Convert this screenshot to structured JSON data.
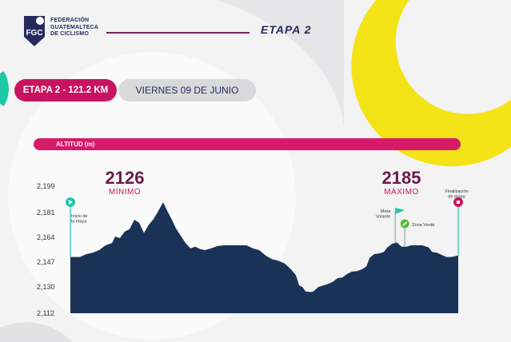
{
  "header": {
    "federation_lines": [
      "FEDERACIÓN",
      "GUATEMALTECA",
      "DE CICLISMO"
    ],
    "logo_text": "FGC",
    "stage_title": "ETAPA 2"
  },
  "info": {
    "stage_label": "ETAPA 2 - 121.2 KM",
    "date_label": "VIERNES 09 DE JUNIO"
  },
  "colors": {
    "navy": "#1b3257",
    "magenta": "#c8145f",
    "yellow": "#f3e317",
    "teal": "#1ec7a6",
    "green": "#5bbd3a"
  },
  "chart_data": {
    "type": "area",
    "title": "ALTITUD (m)",
    "ylabel": "",
    "xlabel": "",
    "ylim": [
      2112,
      2199
    ],
    "yticks": [
      "2,199",
      "2,181",
      "2,164",
      "2,147",
      "2,130",
      "2,112"
    ],
    "y_tick_values": [
      2199,
      2181,
      2164,
      2147,
      2130,
      2112
    ],
    "x_unit_note": "",
    "min_value": "2126",
    "min_label": "MÍNIMO",
    "max_value": "2185",
    "max_label": "MÁXIMO",
    "series": [
      {
        "values": [
          [
            0,
            2150.5
          ],
          [
            3,
            2150.5
          ],
          [
            5,
            2152.5
          ],
          [
            7,
            2153.5
          ],
          [
            9,
            2155.2
          ],
          [
            11,
            2158.5
          ],
          [
            13,
            2160
          ],
          [
            14,
            2164.5
          ],
          [
            15.5,
            2163.5
          ],
          [
            17,
            2168
          ],
          [
            18.5,
            2169.5
          ],
          [
            20,
            2176
          ],
          [
            21.5,
            2174
          ],
          [
            23,
            2167
          ],
          [
            24.5,
            2172.5
          ],
          [
            26,
            2176.5
          ],
          [
            27.5,
            2182
          ],
          [
            29,
            2188
          ],
          [
            30.5,
            2181
          ],
          [
            31.5,
            2177
          ],
          [
            33,
            2170
          ],
          [
            34.5,
            2165
          ],
          [
            36,
            2160
          ],
          [
            37.5,
            2156.5
          ],
          [
            39,
            2157.5
          ],
          [
            40.5,
            2156
          ],
          [
            42,
            2155.2
          ],
          [
            44,
            2156.5
          ],
          [
            46,
            2158
          ],
          [
            48,
            2158.5
          ],
          [
            50,
            2158.5
          ],
          [
            53,
            2158.5
          ],
          [
            55,
            2158.5
          ],
          [
            57,
            2156.5
          ],
          [
            59,
            2155.2
          ],
          [
            61,
            2151.5
          ],
          [
            63,
            2149
          ],
          [
            65,
            2148
          ],
          [
            67,
            2146
          ],
          [
            69,
            2142
          ],
          [
            70.5,
            2138
          ],
          [
            71.5,
            2131
          ],
          [
            72.5,
            2130
          ],
          [
            73.5,
            2127
          ],
          [
            75,
            2126.5
          ],
          [
            76,
            2127
          ],
          [
            77.5,
            2130
          ],
          [
            79,
            2131
          ],
          [
            80.5,
            2132
          ],
          [
            82,
            2133.5
          ],
          [
            83.5,
            2136
          ],
          [
            85,
            2136.5
          ],
          [
            86.5,
            2139
          ],
          [
            88,
            2140.5
          ],
          [
            89.5,
            2140.8
          ],
          [
            91,
            2142
          ],
          [
            92.5,
            2144
          ],
          [
            93.5,
            2150
          ],
          [
            95,
            2152.5
          ],
          [
            96.5,
            2153
          ],
          [
            98,
            2154
          ],
          [
            99,
            2157
          ],
          [
            100.5,
            2159.5
          ],
          [
            102,
            2160.5
          ],
          [
            103.5,
            2157.5
          ],
          [
            105,
            2157.5
          ],
          [
            106.5,
            2158.5
          ],
          [
            108,
            2158.5
          ],
          [
            110,
            2158.5
          ],
          [
            112,
            2157
          ],
          [
            113,
            2154
          ],
          [
            114.5,
            2153.5
          ],
          [
            116,
            2152
          ],
          [
            117.5,
            2150.5
          ],
          [
            119,
            2150.5
          ],
          [
            121.2,
            2151.5
          ]
        ]
      }
    ],
    "annotations": {
      "start": [
        "Inicio de",
        "la etapa"
      ],
      "kom": [
        "Meta",
        "Volante"
      ],
      "green_zone": "Zona Verde",
      "finish": [
        "Finalización",
        "de etapa"
      ]
    },
    "marker_km": {
      "start": 0,
      "kom": 101.5,
      "green_zone": 104.5,
      "finish": 121.2
    }
  }
}
